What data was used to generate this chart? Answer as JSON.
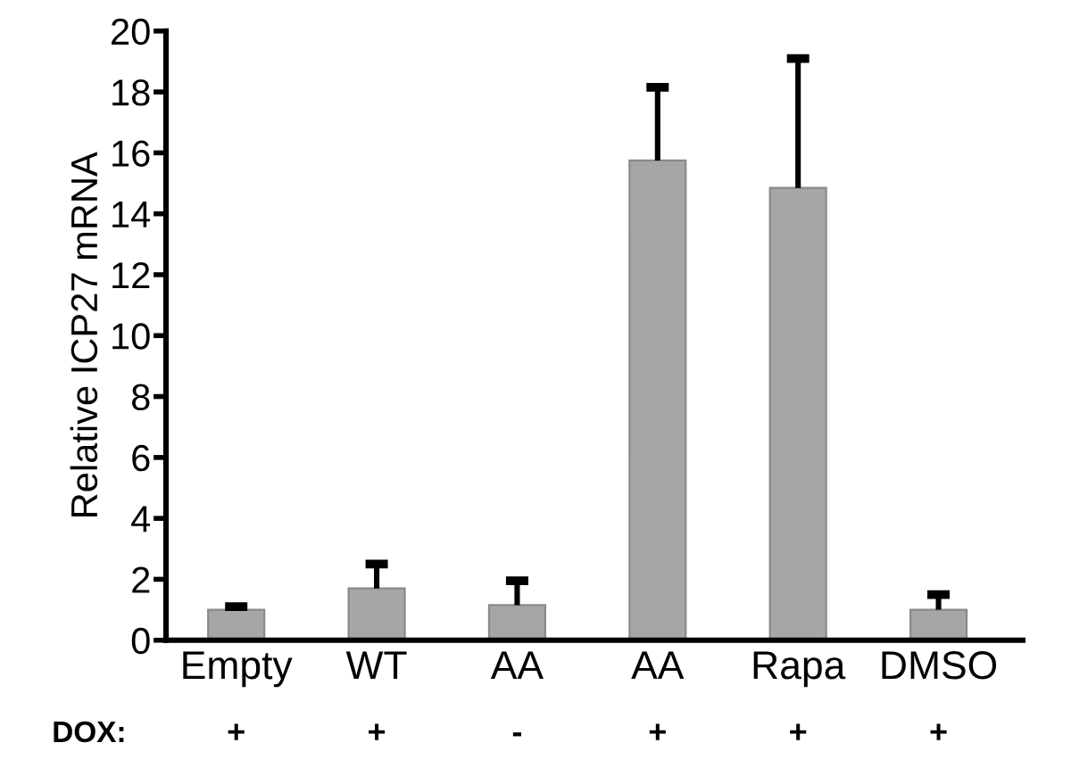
{
  "chart_data": {
    "type": "bar",
    "ylabel": "Relative ICP27 mRNA",
    "categories": [
      "Empty",
      "WT",
      "AA",
      "AA",
      "Rapa",
      "DMSO"
    ],
    "values": [
      1.0,
      1.7,
      1.15,
      15.75,
      14.85,
      1.0
    ],
    "errors": [
      [
        1.0,
        1.1
      ],
      [
        1.7,
        2.5
      ],
      [
        1.15,
        1.95
      ],
      [
        15.75,
        18.15
      ],
      [
        14.85,
        19.1
      ],
      [
        1.0,
        1.5
      ]
    ],
    "color": "#a6a6a6",
    "ylim": [
      0,
      20
    ],
    "yticks": [
      0,
      2,
      4,
      6,
      8,
      10,
      12,
      14,
      16,
      18,
      20
    ],
    "grid": false,
    "annotations": [
      "DOX:",
      "+",
      "+",
      "-",
      "+",
      "+",
      "+"
    ]
  }
}
